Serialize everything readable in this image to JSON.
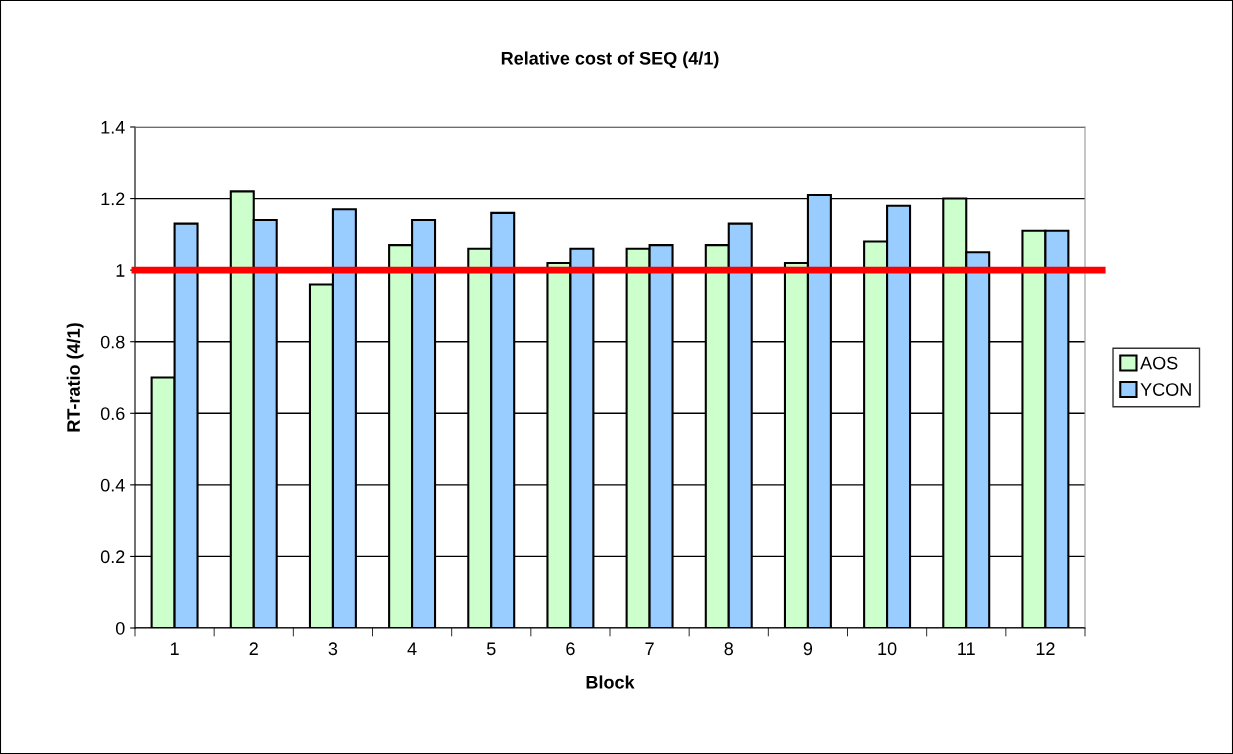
{
  "chart_data": {
    "type": "bar",
    "title": "Relative cost of SEQ (4/1)",
    "xlabel": "Block",
    "ylabel": "RT-ratio (4/1)",
    "categories": [
      "1",
      "2",
      "3",
      "4",
      "5",
      "6",
      "7",
      "8",
      "9",
      "10",
      "11",
      "12"
    ],
    "series": [
      {
        "name": "AOS",
        "color": "#ccffcc",
        "values": [
          0.7,
          1.22,
          0.96,
          1.07,
          1.06,
          1.02,
          1.06,
          1.07,
          1.02,
          1.08,
          1.2,
          1.11
        ]
      },
      {
        "name": "YCON",
        "color": "#99ccff",
        "values": [
          1.13,
          1.14,
          1.17,
          1.14,
          1.16,
          1.06,
          1.07,
          1.13,
          1.21,
          1.18,
          1.05,
          1.11
        ]
      }
    ],
    "ylim": [
      0,
      1.4
    ],
    "yticks": [
      0,
      {
        "value": 0.2,
        "label": "0.2"
      },
      {
        "value": 0.4,
        "label": "0.4"
      },
      {
        "value": 0.6,
        "label": "0.6"
      },
      {
        "value": 0.8,
        "label": "0.8"
      },
      1,
      {
        "value": 1.2,
        "label": "1.2"
      },
      {
        "value": 1.4,
        "label": "1.4"
      }
    ],
    "grid": "y",
    "legend": "right",
    "ref_lines": [
      {
        "axis": "y",
        "value": 1,
        "color": "#ff0000"
      }
    ]
  }
}
